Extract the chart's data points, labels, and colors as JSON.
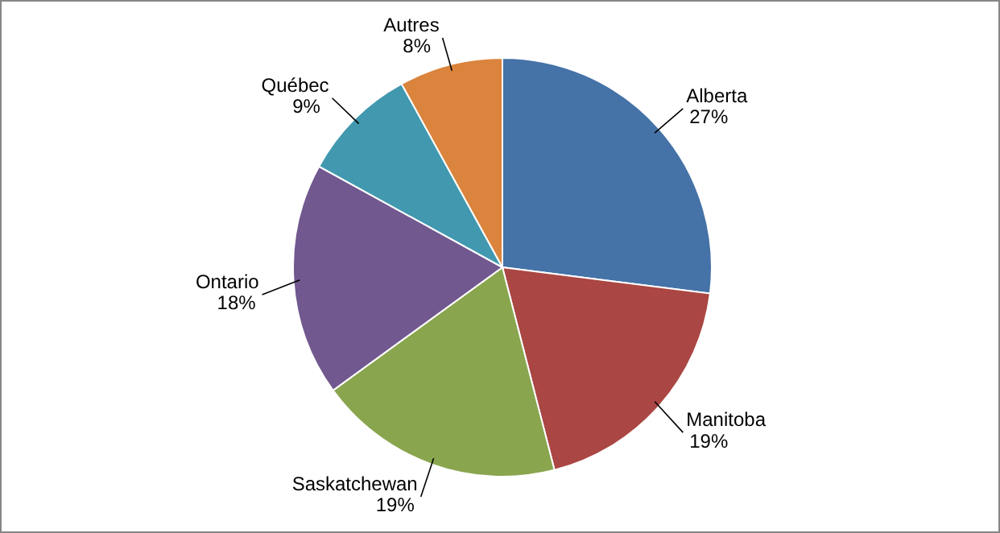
{
  "chart_data": {
    "type": "pie",
    "categories": [
      "Alberta",
      "Manitoba",
      "Saskatchewan",
      "Ontario",
      "Québec",
      "Autres"
    ],
    "values": [
      27,
      19,
      19,
      18,
      9,
      8
    ],
    "colors": [
      "#4572a7",
      "#aa4643",
      "#89a54e",
      "#71588f",
      "#4198af",
      "#db843d"
    ],
    "value_labels": [
      "27%",
      "19%",
      "19%",
      "18%",
      "9%",
      "8%"
    ]
  }
}
